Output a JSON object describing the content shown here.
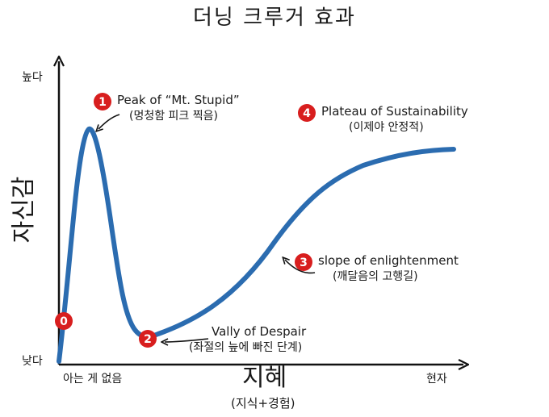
{
  "title": "더닝 크루거 효과",
  "axes": {
    "y_label": "자신감",
    "y_high": "높다",
    "y_low": "낮다",
    "x_label": "지혜",
    "x_sub": "(지식+경험)",
    "x_start": "아는 게 없음",
    "x_end": "현자"
  },
  "stages": [
    {
      "number": "0",
      "title": "",
      "subtitle": ""
    },
    {
      "number": "1",
      "title": "Peak of “Mt. Stupid”",
      "subtitle": "(멍청함 피크 찍음)"
    },
    {
      "number": "2",
      "title": "Vally of Despair",
      "subtitle": "(좌절의 늪에 빠진 단계)"
    },
    {
      "number": "3",
      "title": "slope of enlightenment",
      "subtitle": "(깨달음의 고행길)"
    },
    {
      "number": "4",
      "title": "Plateau of Sustainability",
      "subtitle": "(이제야 안정적)"
    }
  ],
  "colors": {
    "curve": "#2b6cb0",
    "marker": "#d81e1e",
    "axis": "#111111",
    "arrow": "#111111"
  }
}
